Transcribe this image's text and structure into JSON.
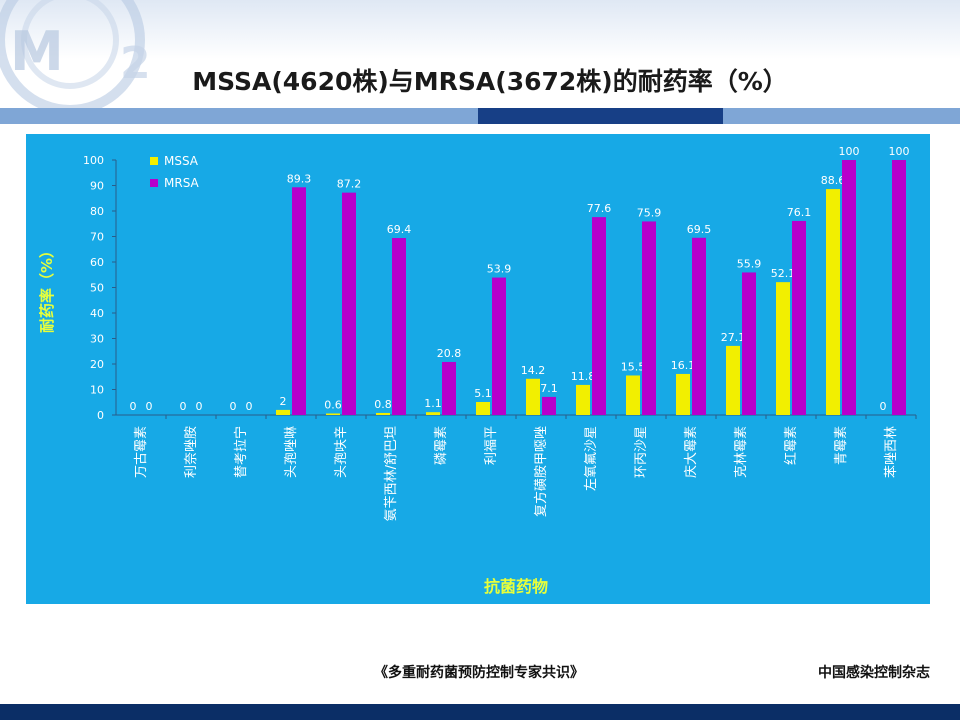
{
  "slide": {
    "title": "MSSA(4620株)与MRSA(3672株)的耐药率（%）",
    "source": "《多重耐药菌预防控制专家共识》",
    "journal": "中国感染控制杂志"
  },
  "colors": {
    "panel": "#17a9e6",
    "mssa": "#f2ef00",
    "mrsa": "#b700cc",
    "axis_label": "#e8ff3a",
    "stripe_light": "#7fa6d6",
    "stripe_dark": "#173f86",
    "bottom_bar": "#0b2e66"
  },
  "chart_data": {
    "type": "bar",
    "ylabel": "耐药率（%）",
    "xlabel": "抗菌药物",
    "ylim": [
      0,
      100
    ],
    "yticks": [
      0,
      10,
      20,
      30,
      40,
      50,
      60,
      70,
      80,
      90,
      100
    ],
    "legend_position": "top-left",
    "categories": [
      "万古霉素",
      "利奈唑胺",
      "替考拉宁",
      "头孢唑啉",
      "头孢呋辛",
      "氨苄西林/舒巴坦",
      "磷霉素",
      "利福平",
      "复方磺胺甲噁唑",
      "左氧氟沙星",
      "环丙沙星",
      "庆大霉素",
      "克林霉素",
      "红霉素",
      "青霉素",
      "苯唑西林"
    ],
    "series": [
      {
        "name": "MSSA",
        "values": [
          0,
          0,
          0,
          2,
          0.6,
          0.8,
          1.1,
          5.1,
          14.2,
          11.8,
          15.5,
          16.1,
          27.1,
          52.1,
          88.6,
          0
        ]
      },
      {
        "name": "MRSA",
        "values": [
          0,
          0,
          0,
          89.3,
          87.2,
          69.4,
          20.8,
          53.9,
          7.1,
          77.6,
          75.9,
          69.5,
          55.9,
          76.1,
          100,
          100
        ]
      }
    ]
  }
}
